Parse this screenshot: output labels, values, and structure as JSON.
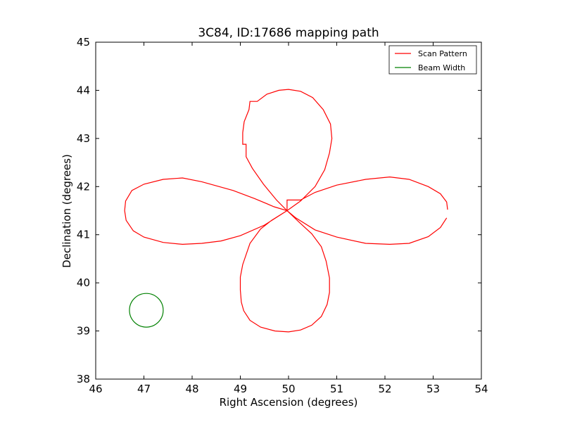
{
  "chart_data": {
    "type": "line",
    "title": "3C84, ID:17686 mapping path",
    "xlabel": "Right Ascension (degrees)",
    "ylabel": "Declination (degrees)",
    "xlim": [
      46,
      54
    ],
    "ylim": [
      38,
      45
    ],
    "xticks": [
      "46",
      "47",
      "48",
      "49",
      "50",
      "51",
      "52",
      "53",
      "54"
    ],
    "yticks": [
      "38",
      "39",
      "40",
      "41",
      "42",
      "43",
      "44",
      "45"
    ],
    "grid": false,
    "legend_position": "top-right",
    "series": [
      {
        "name": "Scan Pattern",
        "color": "#ff0000",
        "points": [
          [
            49.97,
            41.5
          ],
          [
            49.65,
            41.3
          ],
          [
            49.42,
            41.12
          ],
          [
            49.2,
            40.82
          ],
          [
            49.05,
            40.38
          ],
          [
            49.0,
            40.12
          ],
          [
            49.0,
            39.85
          ],
          [
            49.02,
            39.6
          ],
          [
            49.07,
            39.42
          ],
          [
            49.2,
            39.22
          ],
          [
            49.42,
            39.08
          ],
          [
            49.72,
            39.0
          ],
          [
            50.0,
            38.98
          ],
          [
            50.25,
            39.02
          ],
          [
            50.48,
            39.12
          ],
          [
            50.68,
            39.3
          ],
          [
            50.8,
            39.55
          ],
          [
            50.85,
            39.8
          ],
          [
            50.85,
            40.1
          ],
          [
            50.78,
            40.45
          ],
          [
            50.68,
            40.75
          ],
          [
            50.48,
            41.02
          ],
          [
            50.22,
            41.26
          ],
          [
            49.97,
            41.5
          ],
          [
            49.7,
            41.58
          ],
          [
            49.3,
            41.75
          ],
          [
            48.85,
            41.92
          ],
          [
            48.2,
            42.1
          ],
          [
            47.8,
            42.18
          ],
          [
            47.4,
            42.15
          ],
          [
            47.0,
            42.05
          ],
          [
            46.75,
            41.92
          ],
          [
            46.62,
            41.7
          ],
          [
            46.6,
            41.5
          ],
          [
            46.63,
            41.3
          ],
          [
            46.78,
            41.08
          ],
          [
            47.0,
            40.95
          ],
          [
            47.4,
            40.84
          ],
          [
            47.8,
            40.8
          ],
          [
            48.2,
            40.82
          ],
          [
            48.6,
            40.87
          ],
          [
            49.0,
            40.98
          ],
          [
            49.5,
            41.2
          ],
          [
            49.97,
            41.5
          ],
          [
            50.15,
            41.35
          ],
          [
            50.55,
            41.1
          ],
          [
            51.0,
            40.95
          ],
          [
            51.6,
            40.82
          ],
          [
            52.1,
            40.8
          ],
          [
            52.5,
            40.82
          ],
          [
            52.9,
            40.96
          ],
          [
            53.15,
            41.15
          ],
          [
            53.28,
            41.35
          ]
        ]
      },
      {
        "name": "Scan Pattern",
        "color": "#ff0000",
        "points": [
          [
            53.3,
            41.52
          ],
          [
            53.28,
            41.68
          ],
          [
            53.15,
            41.85
          ],
          [
            52.9,
            42.0
          ],
          [
            52.5,
            42.15
          ],
          [
            52.1,
            42.2
          ],
          [
            51.6,
            42.15
          ],
          [
            51.0,
            42.03
          ],
          [
            50.55,
            41.88
          ],
          [
            50.25,
            41.72
          ],
          [
            49.97,
            41.72
          ],
          [
            49.97,
            41.5
          ],
          [
            49.75,
            41.72
          ],
          [
            49.48,
            42.05
          ],
          [
            49.25,
            42.38
          ],
          [
            49.12,
            42.62
          ],
          [
            49.12,
            42.88
          ],
          [
            49.05,
            42.88
          ],
          [
            49.05,
            43.12
          ],
          [
            49.08,
            43.35
          ],
          [
            49.18,
            43.6
          ],
          [
            49.2,
            43.77
          ],
          [
            49.35,
            43.77
          ],
          [
            49.55,
            43.92
          ],
          [
            49.8,
            44.0
          ],
          [
            50.0,
            44.02
          ],
          [
            50.25,
            43.98
          ],
          [
            50.5,
            43.85
          ],
          [
            50.72,
            43.6
          ],
          [
            50.87,
            43.3
          ],
          [
            50.9,
            43.0
          ],
          [
            50.85,
            42.7
          ],
          [
            50.75,
            42.35
          ],
          [
            50.55,
            42.0
          ],
          [
            50.25,
            41.7
          ],
          [
            49.97,
            41.5
          ]
        ]
      }
    ],
    "beam": {
      "name": "Beam Width",
      "color": "#008000",
      "center": [
        47.05,
        39.43
      ],
      "radius": 0.35
    }
  },
  "legend": {
    "scan_label": "Scan Pattern",
    "beam_label": "Beam Width"
  }
}
